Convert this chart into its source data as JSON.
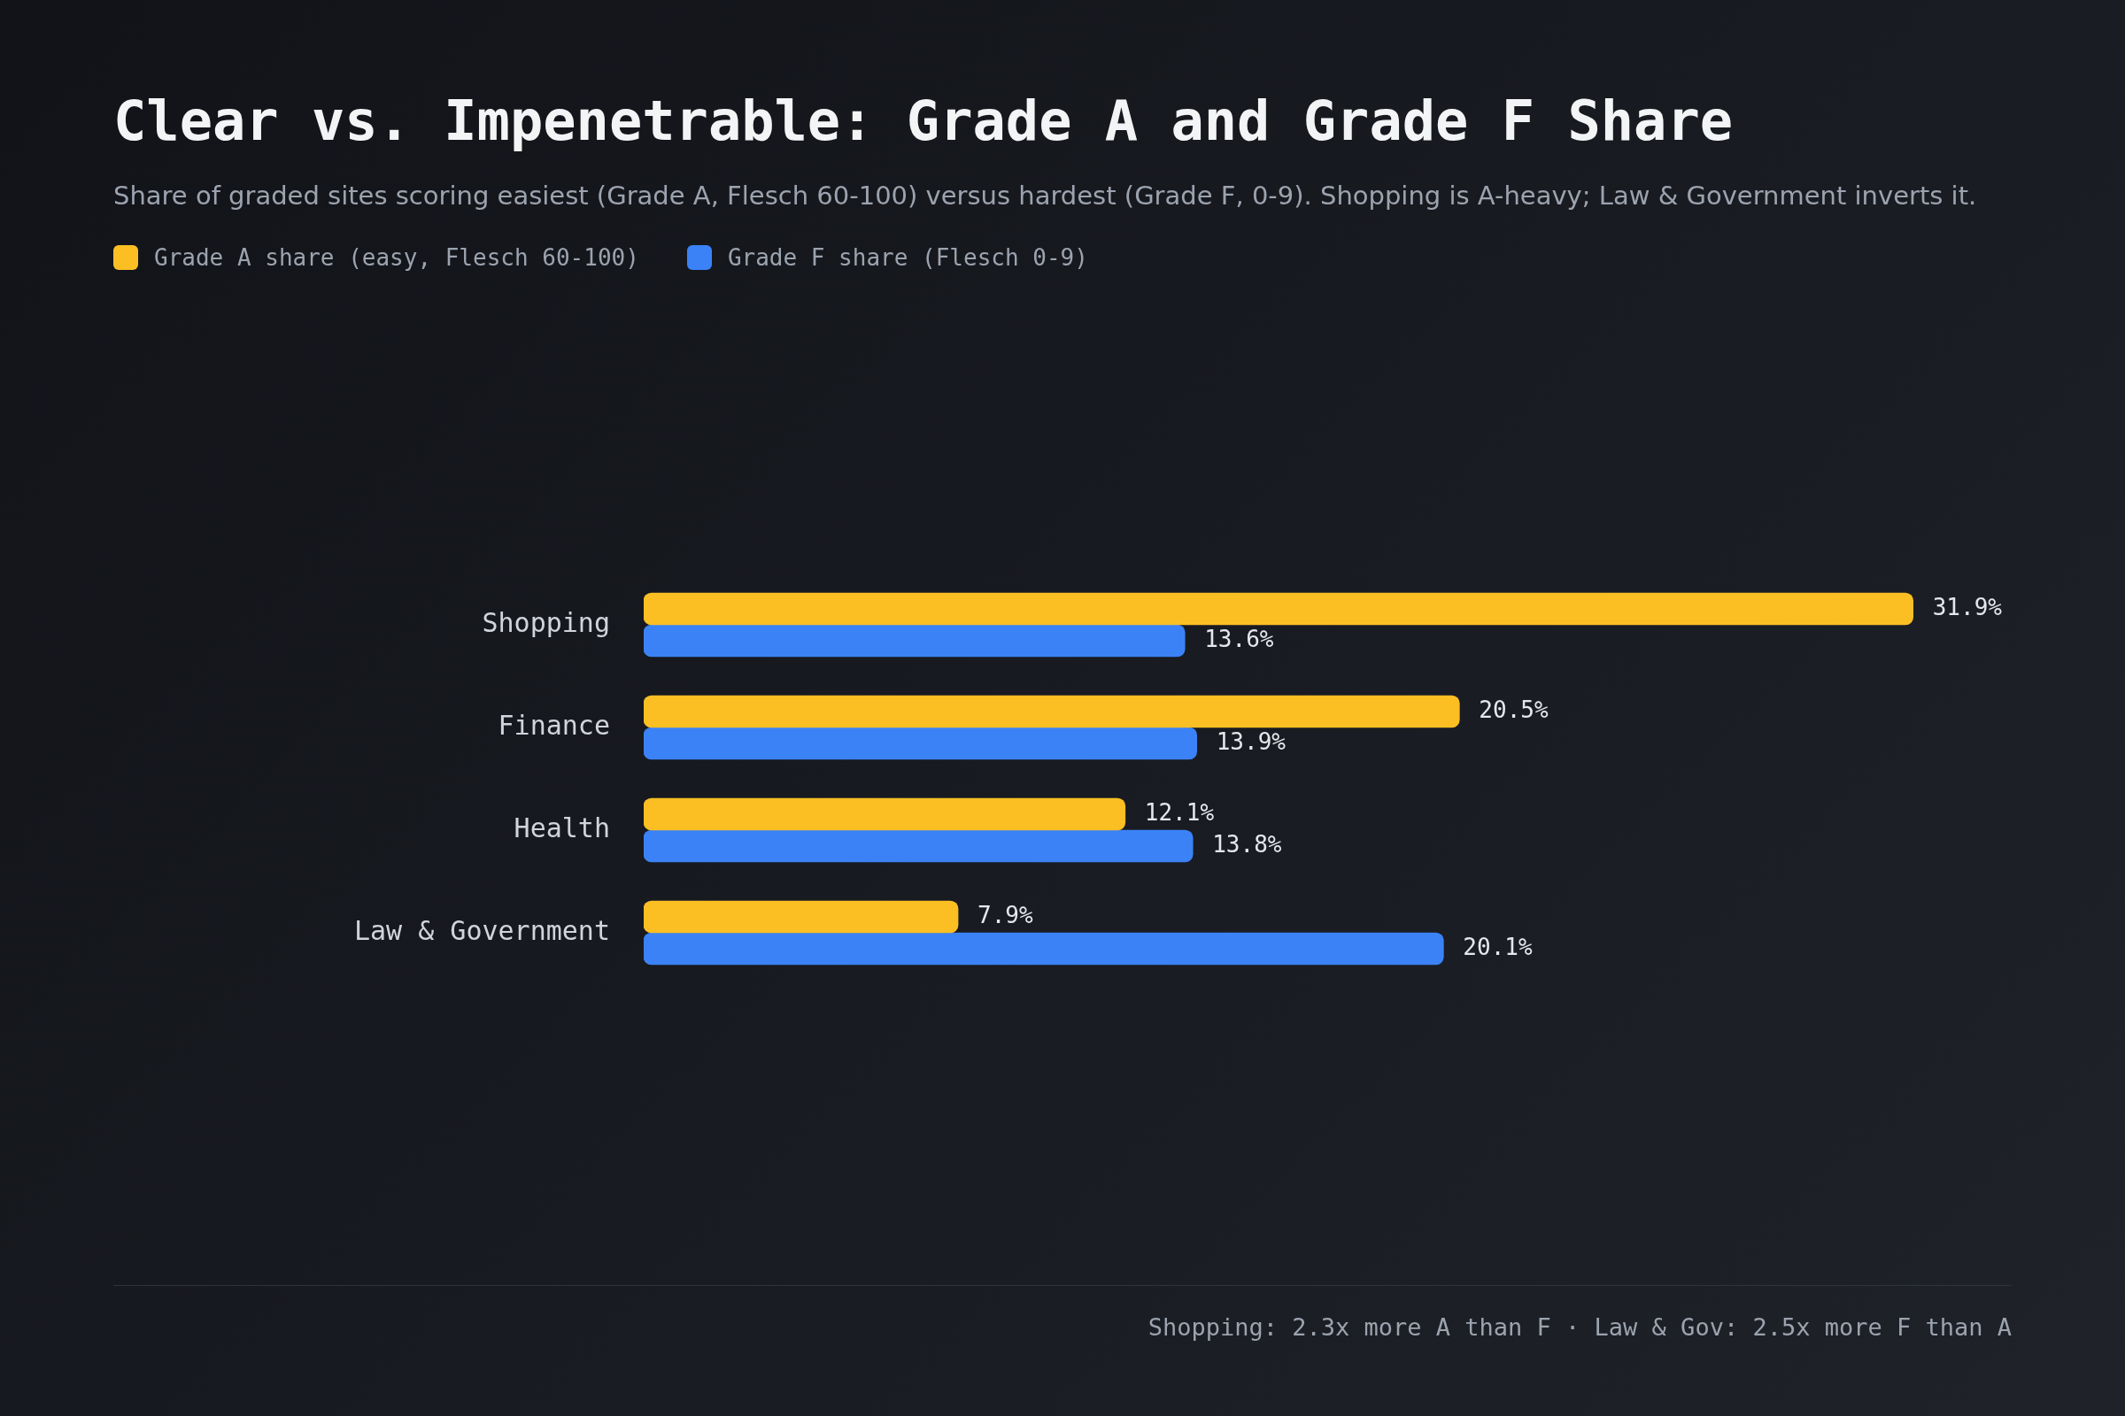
{
  "chart_data": {
    "type": "bar",
    "orientation": "horizontal",
    "title": "Clear vs. Impenetrable: Grade A and Grade F Share",
    "subtitle": "Share of graded sites scoring easiest (Grade A, Flesch 60-100) versus hardest (Grade F, 0-9). Shopping is A-heavy; Law & Government inverts it.",
    "categories": [
      "Shopping",
      "Finance",
      "Health",
      "Law & Government"
    ],
    "series": [
      {
        "name": "Grade A share (easy, Flesch 60-100)",
        "color": "#fbbf24",
        "values": [
          31.9,
          20.5,
          12.1,
          7.9
        ],
        "value_labels": [
          "31.9%",
          "20.5%",
          "12.1%",
          "7.9%"
        ]
      },
      {
        "name": "Grade F share (Flesch 0-9)",
        "color": "#3b82f6",
        "values": [
          13.6,
          13.9,
          13.8,
          20.1
        ],
        "value_labels": [
          "13.6%",
          "13.9%",
          "13.8%",
          "20.1%"
        ]
      }
    ],
    "legend": "top left",
    "tick_labels": "y",
    "annotations": [
      "Shopping: 2.3x more A than F · Law & Gov: 2.5x more F than A"
    ]
  }
}
